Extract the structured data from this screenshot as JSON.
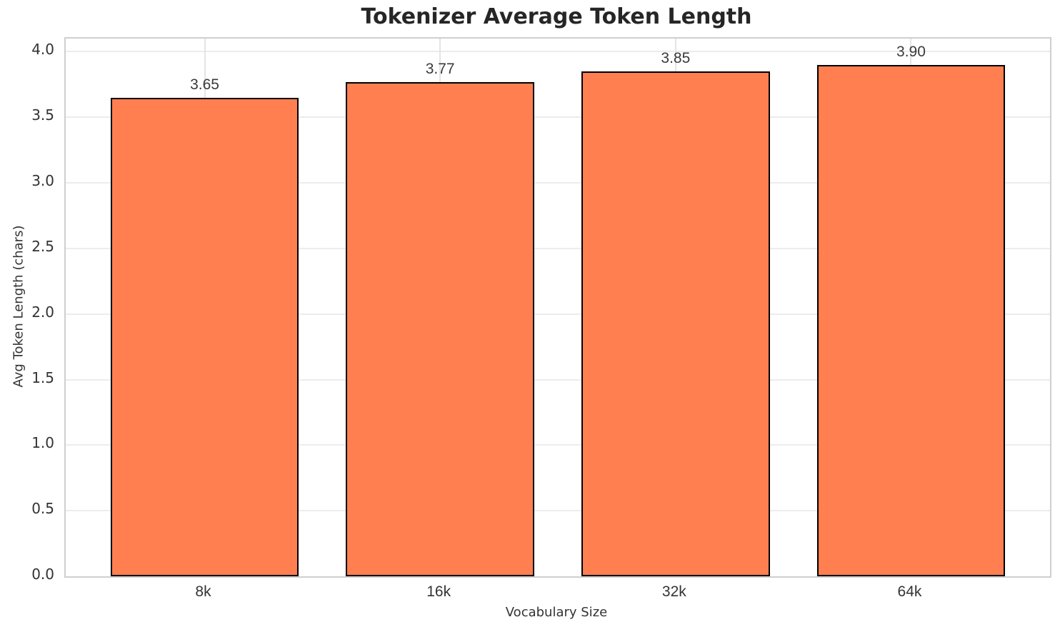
{
  "chart_data": {
    "type": "bar",
    "title": "Tokenizer Average Token Length",
    "xlabel": "Vocabulary Size",
    "ylabel": "Avg Token Length (chars)",
    "categories": [
      "8k",
      "16k",
      "32k",
      "64k"
    ],
    "values": [
      3.65,
      3.77,
      3.85,
      3.9
    ],
    "value_labels": [
      "3.65",
      "3.77",
      "3.85",
      "3.90"
    ],
    "yticks": [
      "0.0",
      "0.5",
      "1.0",
      "1.5",
      "2.0",
      "2.5",
      "3.0",
      "3.5",
      "4.0"
    ],
    "ylim": [
      0,
      4.1
    ],
    "grid": "on",
    "legend": "none",
    "bar_color": "#FF7F50",
    "bar_edge_color": "#000000",
    "grid_color": "#ececec",
    "spine_color": "#cfcfcf",
    "tick_color": "#333333",
    "title_color": "#262626",
    "bar_width_fraction": 0.8,
    "x_margin_fraction": 0.05
  }
}
